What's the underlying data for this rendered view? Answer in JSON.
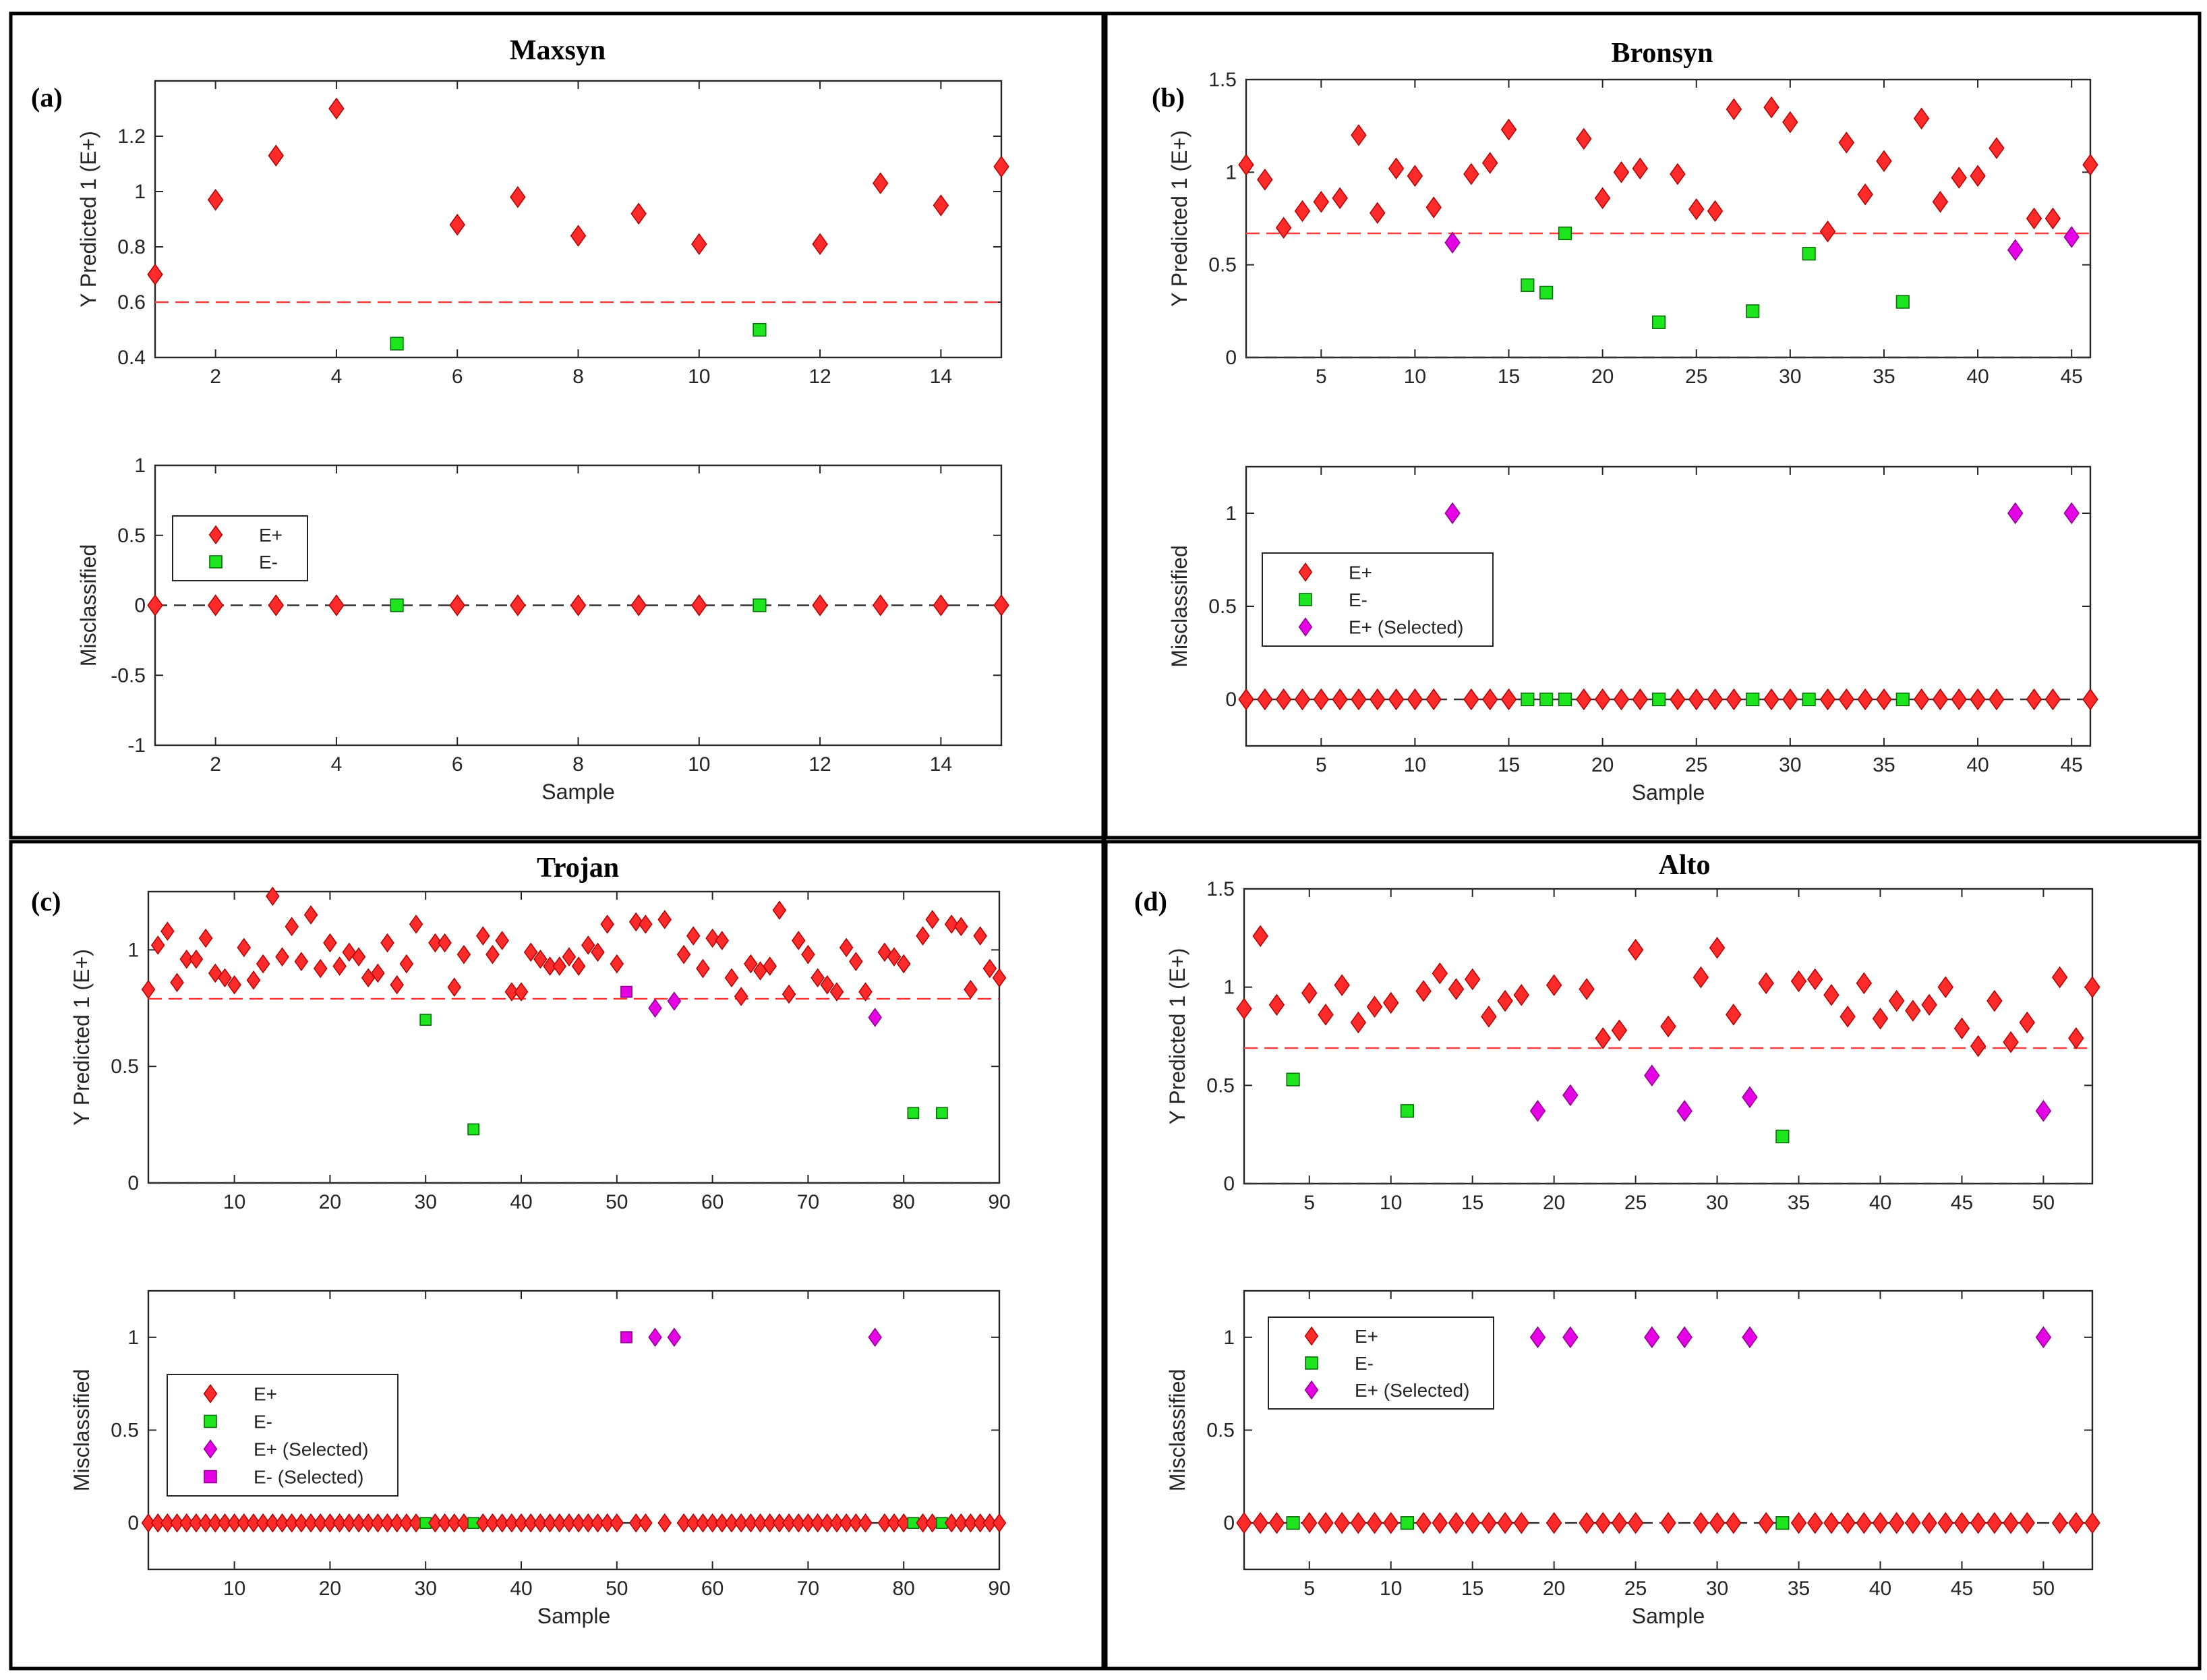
{
  "colors": {
    "e_plus": "#ff2a2a",
    "e_plus_stroke": "#b30000",
    "e_minus": "#1ee61e",
    "e_minus_stroke": "#0a6e0a",
    "selected": "#e600e6",
    "selected_stroke": "#8f008f",
    "threshold": "#ff3b3b",
    "baseline": "#333333"
  },
  "xlabel": "Sample",
  "ylabel_top": "Y Predicted 1 (E+)",
  "ylabel_bottom": "Misclassified",
  "chart_data": [
    {
      "type": "scatter",
      "panel": "(a)",
      "title": "Maxsyn",
      "n": 15,
      "threshold": 0.6,
      "top": {
        "ylim": [
          0.4,
          1.4
        ],
        "yticks": [
          0.4,
          0.6,
          0.8,
          1.0,
          1.2
        ],
        "ytick_labels": [
          "0.4",
          "0.6",
          "0.8",
          "1",
          "1.2"
        ],
        "xlim": [
          1,
          15
        ],
        "xticks": [
          2,
          4,
          6,
          8,
          10,
          12,
          14
        ],
        "values": [
          0.7,
          0.97,
          1.13,
          1.3,
          0.45,
          0.88,
          0.98,
          0.84,
          0.92,
          0.81,
          0.5,
          0.81,
          1.03,
          0.95,
          1.09
        ],
        "e_minus": [
          5,
          11
        ],
        "e_plus_selected": [],
        "e_minus_selected": [],
        "baseline_zero": false
      },
      "bottom": {
        "ylim": [
          -1,
          1
        ],
        "yticks": [
          -1,
          -0.5,
          0,
          0.5,
          1
        ],
        "ytick_labels": [
          "-1",
          "-0.5",
          "0",
          "0.5",
          "1"
        ],
        "xticks": [
          2,
          4,
          6,
          8,
          10,
          12,
          14
        ]
      },
      "legend": {
        "position": "upper-left",
        "entries": [
          "E+",
          "E-"
        ]
      }
    },
    {
      "type": "scatter",
      "panel": "(b)",
      "title": "Bronsyn",
      "n": 46,
      "threshold": 0.67,
      "top": {
        "ylim": [
          0,
          1.5
        ],
        "yticks": [
          0,
          0.5,
          1.0,
          1.5
        ],
        "ytick_labels": [
          "0",
          "0.5",
          "1",
          "1.5"
        ],
        "xlim": [
          1,
          46
        ],
        "xticks": [
          5,
          10,
          15,
          20,
          25,
          30,
          35,
          40,
          45
        ],
        "values": [
          1.04,
          0.96,
          0.7,
          0.79,
          0.84,
          0.86,
          1.2,
          0.78,
          1.02,
          0.98,
          0.81,
          0.62,
          0.99,
          1.05,
          1.23,
          0.39,
          0.35,
          0.67,
          1.18,
          0.86,
          1.0,
          1.02,
          0.19,
          0.99,
          0.8,
          0.79,
          1.34,
          0.25,
          1.35,
          1.27,
          0.56,
          0.68,
          1.16,
          0.88,
          1.06,
          0.3,
          1.29,
          0.84,
          0.97,
          0.98,
          1.13,
          0.58,
          0.75,
          0.75,
          0.65,
          1.04
        ],
        "e_minus": [
          16,
          17,
          18,
          23,
          28,
          31,
          36
        ],
        "e_plus_selected": [
          12,
          42,
          45
        ],
        "e_minus_selected": [],
        "baseline_zero": true
      },
      "bottom": {
        "ylim": [
          -0.25,
          1.25
        ],
        "yticks": [
          0,
          0.5,
          1
        ],
        "ytick_labels": [
          "0",
          "0.5",
          "1"
        ],
        "xticks": [
          5,
          10,
          15,
          20,
          25,
          30,
          35,
          40,
          45
        ]
      },
      "legend": {
        "position": "middle-left",
        "entries": [
          "E+",
          "E-",
          "E+ (Selected)"
        ]
      }
    },
    {
      "type": "scatter",
      "panel": "(c)",
      "title": "Trojan",
      "n": 90,
      "threshold": 0.79,
      "top": {
        "ylim": [
          0,
          1.25
        ],
        "yticks": [
          0,
          0.5,
          1.0
        ],
        "ytick_labels": [
          "0",
          "0.5",
          "1"
        ],
        "xlim": [
          1,
          90
        ],
        "xticks": [
          10,
          20,
          30,
          40,
          50,
          60,
          70,
          80,
          90
        ],
        "values": [
          0.83,
          1.02,
          1.08,
          0.86,
          0.96,
          0.96,
          1.05,
          0.9,
          0.88,
          0.85,
          1.01,
          0.87,
          0.94,
          1.23,
          0.97,
          1.1,
          0.95,
          1.15,
          0.92,
          1.03,
          0.93,
          0.99,
          0.97,
          0.88,
          0.9,
          1.03,
          0.85,
          0.94,
          1.11,
          0.7,
          1.03,
          1.03,
          0.84,
          0.98,
          0.23,
          1.06,
          0.98,
          1.04,
          0.82,
          0.82,
          0.99,
          0.96,
          0.93,
          0.93,
          0.97,
          0.93,
          1.02,
          0.99,
          1.11,
          0.94,
          0.82,
          1.12,
          1.11,
          0.75,
          1.13,
          0.78,
          0.98,
          1.06,
          0.92,
          1.05,
          1.04,
          0.88,
          0.8,
          0.94,
          0.91,
          0.93,
          1.17,
          0.81,
          1.04,
          0.98,
          0.88,
          0.85,
          0.82,
          1.01,
          0.95,
          0.82,
          0.71,
          0.99,
          0.97,
          0.94,
          0.3,
          1.06,
          1.13,
          0.3,
          1.11,
          1.1,
          0.83,
          1.06,
          0.92,
          0.88
        ],
        "e_minus": [
          30,
          35,
          81,
          84
        ],
        "e_plus_selected": [
          54,
          56,
          77
        ],
        "e_minus_selected": [
          51
        ],
        "baseline_zero": true
      },
      "bottom": {
        "ylim": [
          -0.25,
          1.25
        ],
        "yticks": [
          0,
          0.5,
          1
        ],
        "ytick_labels": [
          "0",
          "0.5",
          "1"
        ],
        "xticks": [
          10,
          20,
          30,
          40,
          50,
          60,
          70,
          80,
          90
        ]
      },
      "legend": {
        "position": "lower-left",
        "entries": [
          "E+",
          "E-",
          "E+ (Selected)",
          "E- (Selected)"
        ]
      }
    },
    {
      "type": "scatter",
      "panel": "(d)",
      "title": "Alto",
      "n": 53,
      "threshold": 0.69,
      "top": {
        "ylim": [
          0,
          1.5
        ],
        "yticks": [
          0,
          0.5,
          1.0,
          1.5
        ],
        "ytick_labels": [
          "0",
          "0.5",
          "1",
          "1.5"
        ],
        "xlim": [
          1,
          53
        ],
        "xticks": [
          5,
          10,
          15,
          20,
          25,
          30,
          35,
          40,
          45,
          50
        ],
        "values": [
          0.89,
          1.26,
          0.91,
          0.53,
          0.97,
          0.86,
          1.01,
          0.82,
          0.9,
          0.92,
          0.37,
          0.98,
          1.07,
          0.99,
          1.04,
          0.85,
          0.93,
          0.96,
          0.37,
          1.01,
          0.45,
          0.99,
          0.74,
          0.78,
          1.19,
          0.55,
          0.8,
          0.37,
          1.05,
          1.2,
          0.86,
          0.44,
          1.02,
          0.24,
          1.03,
          1.04,
          0.96,
          0.85,
          1.02,
          0.84,
          0.93,
          0.88,
          0.91,
          1.0,
          0.79,
          0.7,
          0.93,
          0.72,
          0.82,
          0.37,
          1.05,
          0.74,
          1.0
        ],
        "e_minus": [
          4,
          11,
          34
        ],
        "e_plus_selected": [
          19,
          21,
          26,
          28,
          32,
          50
        ],
        "e_minus_selected": [],
        "baseline_zero": true
      },
      "bottom": {
        "ylim": [
          -0.25,
          1.25
        ],
        "yticks": [
          0,
          0.5,
          1
        ],
        "ytick_labels": [
          "0",
          "0.5",
          "1"
        ],
        "xticks": [
          5,
          10,
          15,
          20,
          25,
          30,
          35,
          40,
          45,
          50
        ]
      },
      "legend": {
        "position": "upper-left",
        "entries": [
          "E+",
          "E-",
          "E+ (Selected)"
        ]
      }
    }
  ]
}
